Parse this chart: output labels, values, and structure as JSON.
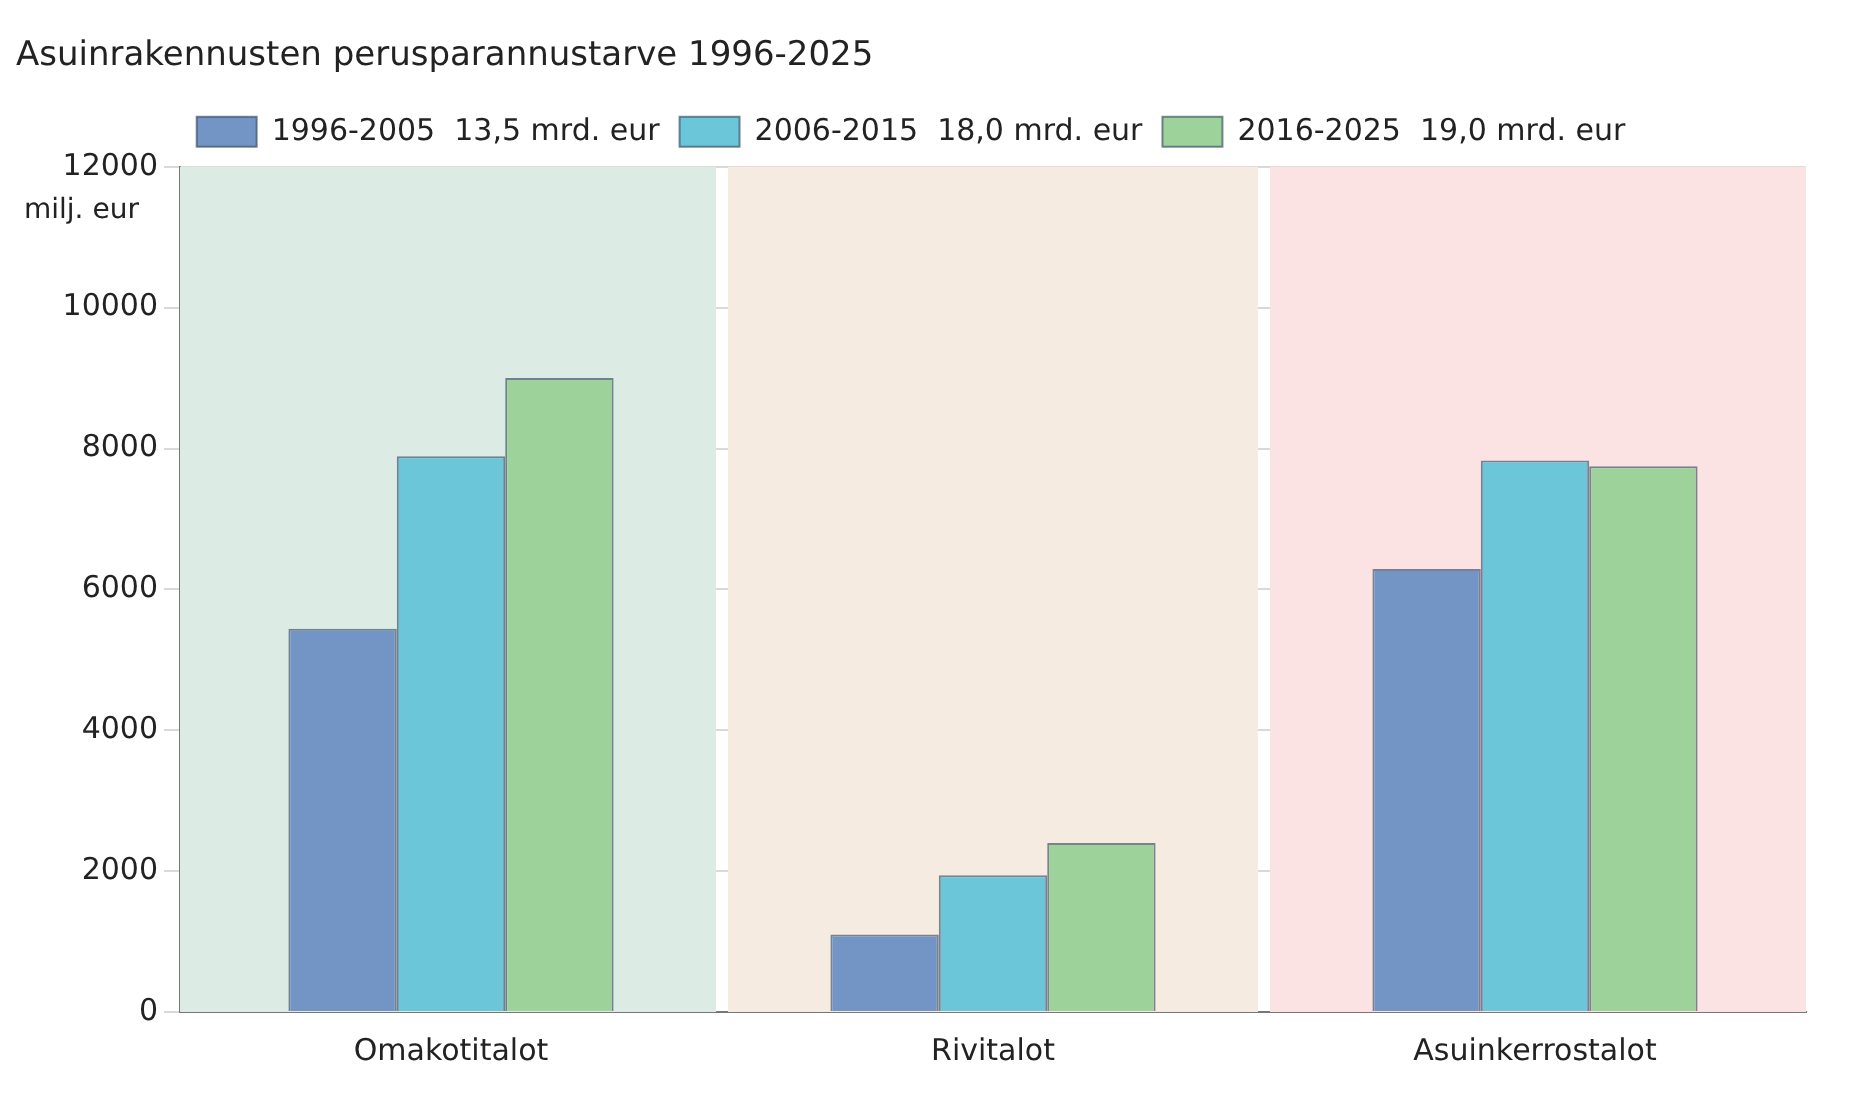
{
  "chart_data": {
    "type": "bar",
    "title": "Asuinrakennusten perusparannustarve 1996-2025",
    "ylabel": "milj. eur",
    "categories": [
      "Omakotitalot",
      "Rivitalot",
      "Asuinkerrostalot"
    ],
    "series": [
      {
        "name": "1996-2005  13,5 mrd. eur",
        "color": "#7395c6",
        "values": [
          5440,
          1100,
          6290
        ]
      },
      {
        "name": "2006-2015  18,0 mrd. eur",
        "color": "#6cc6d9",
        "values": [
          7890,
          1940,
          7830
        ]
      },
      {
        "name": "2016-2025  19,0 mrd. eur",
        "color": "#9dd39a",
        "values": [
          9000,
          2400,
          7750
        ]
      }
    ],
    "bands": [
      {
        "axis": "x",
        "from": "Omakotitalot",
        "to": "Omakotitalot",
        "color": "#dcebe4"
      },
      {
        "axis": "x",
        "from": "Rivitalot",
        "to": "Rivitalot",
        "color": "#f5ebe0"
      },
      {
        "axis": "x",
        "from": "Asuinkerrostalot",
        "to": "Asuinkerrostalot",
        "color": "#fbe3e3"
      }
    ],
    "ylim": [
      0,
      12000
    ],
    "yticks": [
      0,
      2000,
      4000,
      6000,
      8000,
      10000,
      12000
    ],
    "grid": "y",
    "legend": "top"
  }
}
